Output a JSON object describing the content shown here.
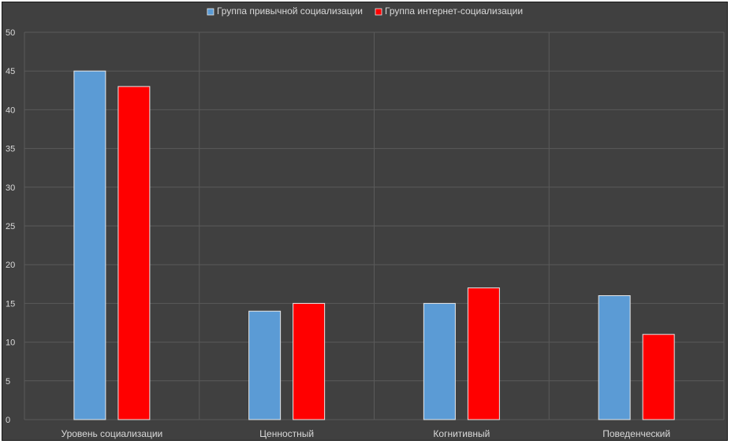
{
  "chart_data": {
    "type": "bar",
    "title": "",
    "xlabel": "",
    "ylabel": "",
    "ylim": [
      0,
      50
    ],
    "yticks": [
      0,
      5,
      10,
      15,
      20,
      25,
      30,
      35,
      40,
      45,
      50
    ],
    "grid": true,
    "legend_position": "top-center",
    "categories": [
      "Уровень социализации",
      "Ценностный",
      "Когнитивный",
      "Поведенческий"
    ],
    "series": [
      {
        "name": "Группа привычной социализации",
        "color": "#5b9bd5",
        "values": [
          45,
          14,
          15,
          16
        ]
      },
      {
        "name": "Группа интернет-социализации",
        "color": "#ff0000",
        "values": [
          43,
          15,
          17,
          11
        ]
      }
    ]
  },
  "colors": {
    "background": "#404040",
    "grid": "#5a5a5a",
    "text": "#d9d9d9"
  }
}
